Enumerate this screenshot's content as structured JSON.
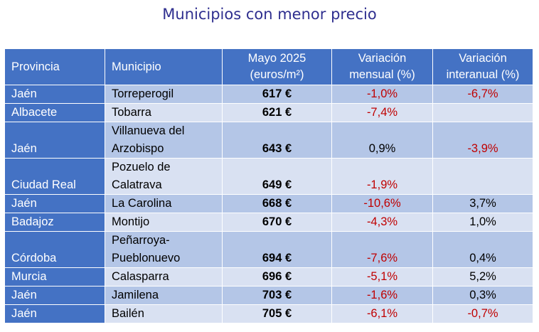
{
  "title": "Municipios con menor precio",
  "colors": {
    "header": "#4472c4",
    "row_dark": "#b4c6e7",
    "row_light": "#d9e1f2",
    "negative": "#c00000",
    "title": "#2f2f8f"
  },
  "headers": {
    "provincia": "Provincia",
    "municipio": "Municipio",
    "precio_line1": "Mayo 2025",
    "precio_line2": "(euros/m²)",
    "mensual_line1": "Variación",
    "mensual_line2": "mensual (%)",
    "interanual_line1": "Variación",
    "interanual_line2": "interanual (%)"
  },
  "rows": [
    {
      "provincia": "Jaén",
      "municipio": [
        "Torreperogil"
      ],
      "precio": "617 €",
      "mensual": "-1,0%",
      "interanual": "-6,7%"
    },
    {
      "provincia": "Albacete",
      "municipio": [
        "Tobarra"
      ],
      "precio": "621 €",
      "mensual": "-7,4%",
      "interanual": ""
    },
    {
      "provincia": "Jaén",
      "municipio": [
        "Villanueva del",
        "Arzobispo"
      ],
      "precio": "643 €",
      "mensual": "0,9%",
      "interanual": "-3,9%"
    },
    {
      "provincia": "Ciudad Real",
      "municipio": [
        "Pozuelo de",
        "Calatrava"
      ],
      "precio": "649 €",
      "mensual": "-1,9%",
      "interanual": ""
    },
    {
      "provincia": "Jaén",
      "municipio": [
        "La Carolina"
      ],
      "precio": "668 €",
      "mensual": "-10,6%",
      "interanual": "3,7%"
    },
    {
      "provincia": "Badajoz",
      "municipio": [
        "Montijo"
      ],
      "precio": "670 €",
      "mensual": "-4,3%",
      "interanual": "1,0%"
    },
    {
      "provincia": "Córdoba",
      "municipio": [
        "Peñarroya-",
        "Pueblonuevo"
      ],
      "precio": "694 €",
      "mensual": "-7,6%",
      "interanual": "0,4%"
    },
    {
      "provincia": "Murcia",
      "municipio": [
        "Calasparra"
      ],
      "precio": "696 €",
      "mensual": "-5,1%",
      "interanual": "5,2%"
    },
    {
      "provincia": "Jaén",
      "municipio": [
        "Jamilena"
      ],
      "precio": "703 €",
      "mensual": "-1,6%",
      "interanual": "0,3%"
    },
    {
      "provincia": "Jaén",
      "municipio": [
        "Bailén"
      ],
      "precio": "705 €",
      "mensual": "-6,1%",
      "interanual": "-0,7%"
    }
  ]
}
